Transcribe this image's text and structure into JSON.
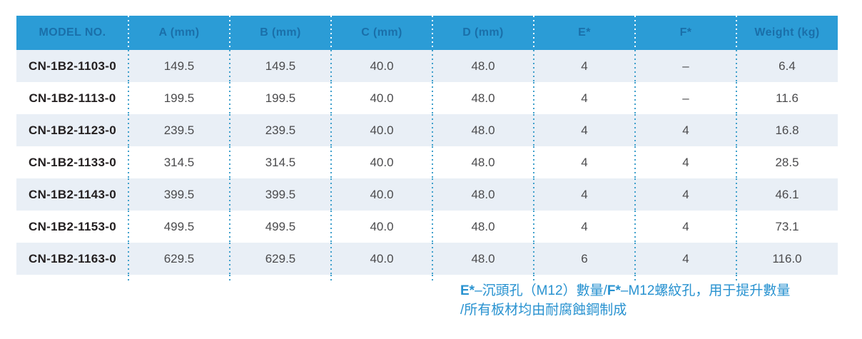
{
  "colors": {
    "header_bg": "#2B9CD6",
    "header_text": "#1A6FA9",
    "row_alt_bg": "#E9EFF6",
    "row_bg": "#FFFFFF",
    "body_text": "#4B4B4D",
    "model_text": "#231F20",
    "divider_body": "#3FA0CC",
    "divider_header": "#FFFFFF",
    "footnote_text": "#2892D0"
  },
  "table": {
    "columns": [
      "MODEL NO.",
      "A (mm)",
      "B (mm)",
      "C (mm)",
      "D (mm)",
      "E*",
      "F*",
      "Weight (kg)"
    ],
    "rows": [
      {
        "model": "CN-1B2-1103-0",
        "a": "149.5",
        "b": "149.5",
        "c": "40.0",
        "d": "48.0",
        "e": "4",
        "f": "–",
        "weight": "6.4"
      },
      {
        "model": "CN-1B2-1113-0",
        "a": "199.5",
        "b": "199.5",
        "c": "40.0",
        "d": "48.0",
        "e": "4",
        "f": "–",
        "weight": "11.6"
      },
      {
        "model": "CN-1B2-1123-0",
        "a": "239.5",
        "b": "239.5",
        "c": "40.0",
        "d": "48.0",
        "e": "4",
        "f": "4",
        "weight": "16.8"
      },
      {
        "model": "CN-1B2-1133-0",
        "a": "314.5",
        "b": "314.5",
        "c": "40.0",
        "d": "48.0",
        "e": "4",
        "f": "4",
        "weight": "28.5"
      },
      {
        "model": "CN-1B2-1143-0",
        "a": "399.5",
        "b": "399.5",
        "c": "40.0",
        "d": "48.0",
        "e": "4",
        "f": "4",
        "weight": "46.1"
      },
      {
        "model": "CN-1B2-1153-0",
        "a": "499.5",
        "b": "499.5",
        "c": "40.0",
        "d": "48.0",
        "e": "4",
        "f": "4",
        "weight": "73.1"
      },
      {
        "model": "CN-1B2-1163-0",
        "a": "629.5",
        "b": "629.5",
        "c": "40.0",
        "d": "48.0",
        "e": "6",
        "f": "4",
        "weight": "116.0"
      }
    ]
  },
  "footnote": {
    "e_label": "E*",
    "e_text": "–沉頭孔（M12）數量/",
    "f_label": "F*",
    "f_text": "–M12螺紋孔，用于提升數量",
    "line2": "/所有板材均由耐腐蝕鋼制成"
  }
}
